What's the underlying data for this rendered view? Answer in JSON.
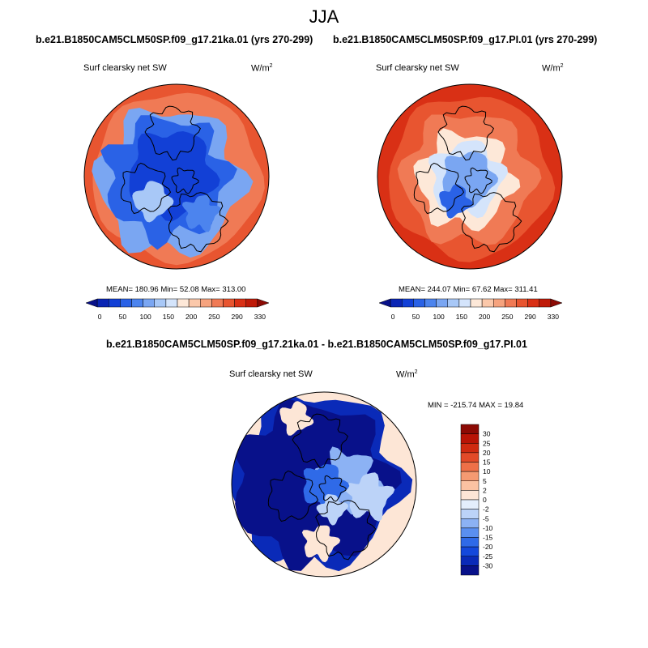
{
  "title": "JJA",
  "panels": [
    {
      "case_title": "b.e21.B1850CAM5CLM50SP.f09_g17.21ka.01 (yrs 270-299)",
      "variable": "Surf clearsky net SW",
      "units": "W/m",
      "units_exponent": "2",
      "stats": "MEAN= 180.96  Min=  52.08  Max= 313.00",
      "mean": 180.96,
      "min": 52.08,
      "max": 313.0
    },
    {
      "case_title": "b.e21.B1850CAM5CLM50SP.f09_g17.PI.01 (yrs 270-299)",
      "variable": "Surf clearsky net SW",
      "units": "W/m",
      "units_exponent": "2",
      "stats": "MEAN= 244.07  Min=  67.62  Max= 311.41",
      "mean": 244.07,
      "min": 67.62,
      "max": 311.41
    }
  ],
  "diff_panel": {
    "title": "b.e21.B1850CAM5CLM50SP.f09_g17.21ka.01 - b.e21.B1850CAM5CLM50SP.f09_g17.PI.01",
    "variable": "Surf clearsky net SW",
    "units": "W/m",
    "units_exponent": "2",
    "stats": "MIN = -215.74 MAX =  19.84",
    "min": -215.74,
    "max": 19.84
  },
  "colors": {
    "abs_scale": [
      "#08118a",
      "#0a25b4",
      "#1240d6",
      "#2a62e6",
      "#4c84ee",
      "#7aa6f2",
      "#a8c8f7",
      "#d4e4fb",
      "#fde8d8",
      "#fbc8aa",
      "#f6a37e",
      "#f07a55",
      "#e85530",
      "#d93015",
      "#bf1a08",
      "#8c0a04"
    ],
    "diff_scale": [
      "#08118a",
      "#0a2ab8",
      "#1448dc",
      "#2f6ae8",
      "#5a8ff0",
      "#8cb2f4",
      "#bcd3f8",
      "#e4eefc",
      "#fde6d6",
      "#fbc2a2",
      "#f59a72",
      "#ee7048",
      "#e24a28",
      "#cf2a10",
      "#b81406",
      "#8c0a04"
    ]
  },
  "chart_data": [
    {
      "type": "heatmap",
      "title": "b.e21.B1850CAM5CLM50SP.f09_g17.21ka.01 (yrs 270-299)",
      "variable": "Surf clearsky net SW",
      "units": "W/m^2",
      "colorbar_ticks": [
        "0",
        "50",
        "100",
        "150",
        "200",
        "250",
        "290",
        "330"
      ],
      "colorbar_levels": [
        0,
        25,
        50,
        75,
        100,
        125,
        150,
        175,
        200,
        225,
        250,
        270,
        290,
        310,
        330
      ],
      "mean": 180.96,
      "min": 52.08,
      "max": 313.0
    },
    {
      "type": "heatmap",
      "title": "b.e21.B1850CAM5CLM50SP.f09_g17.PI.01 (yrs 270-299)",
      "variable": "Surf clearsky net SW",
      "units": "W/m^2",
      "colorbar_ticks": [
        "0",
        "50",
        "100",
        "150",
        "200",
        "250",
        "290",
        "330"
      ],
      "colorbar_levels": [
        0,
        25,
        50,
        75,
        100,
        125,
        150,
        175,
        200,
        225,
        250,
        270,
        290,
        310,
        330
      ],
      "mean": 244.07,
      "min": 67.62,
      "max": 311.41
    },
    {
      "type": "heatmap",
      "title": "b.e21.B1850CAM5CLM50SP.f09_g17.21ka.01 - b.e21.B1850CAM5CLM50SP.f09_g17.PI.01",
      "variable": "Surf clearsky net SW",
      "units": "W/m^2",
      "colorbar_ticks": [
        "30",
        "25",
        "20",
        "15",
        "10",
        "5",
        "2",
        "0",
        "-2",
        "-5",
        "-10",
        "-15",
        "-20",
        "-25",
        "-30"
      ],
      "min": -215.74,
      "max": 19.84
    }
  ]
}
